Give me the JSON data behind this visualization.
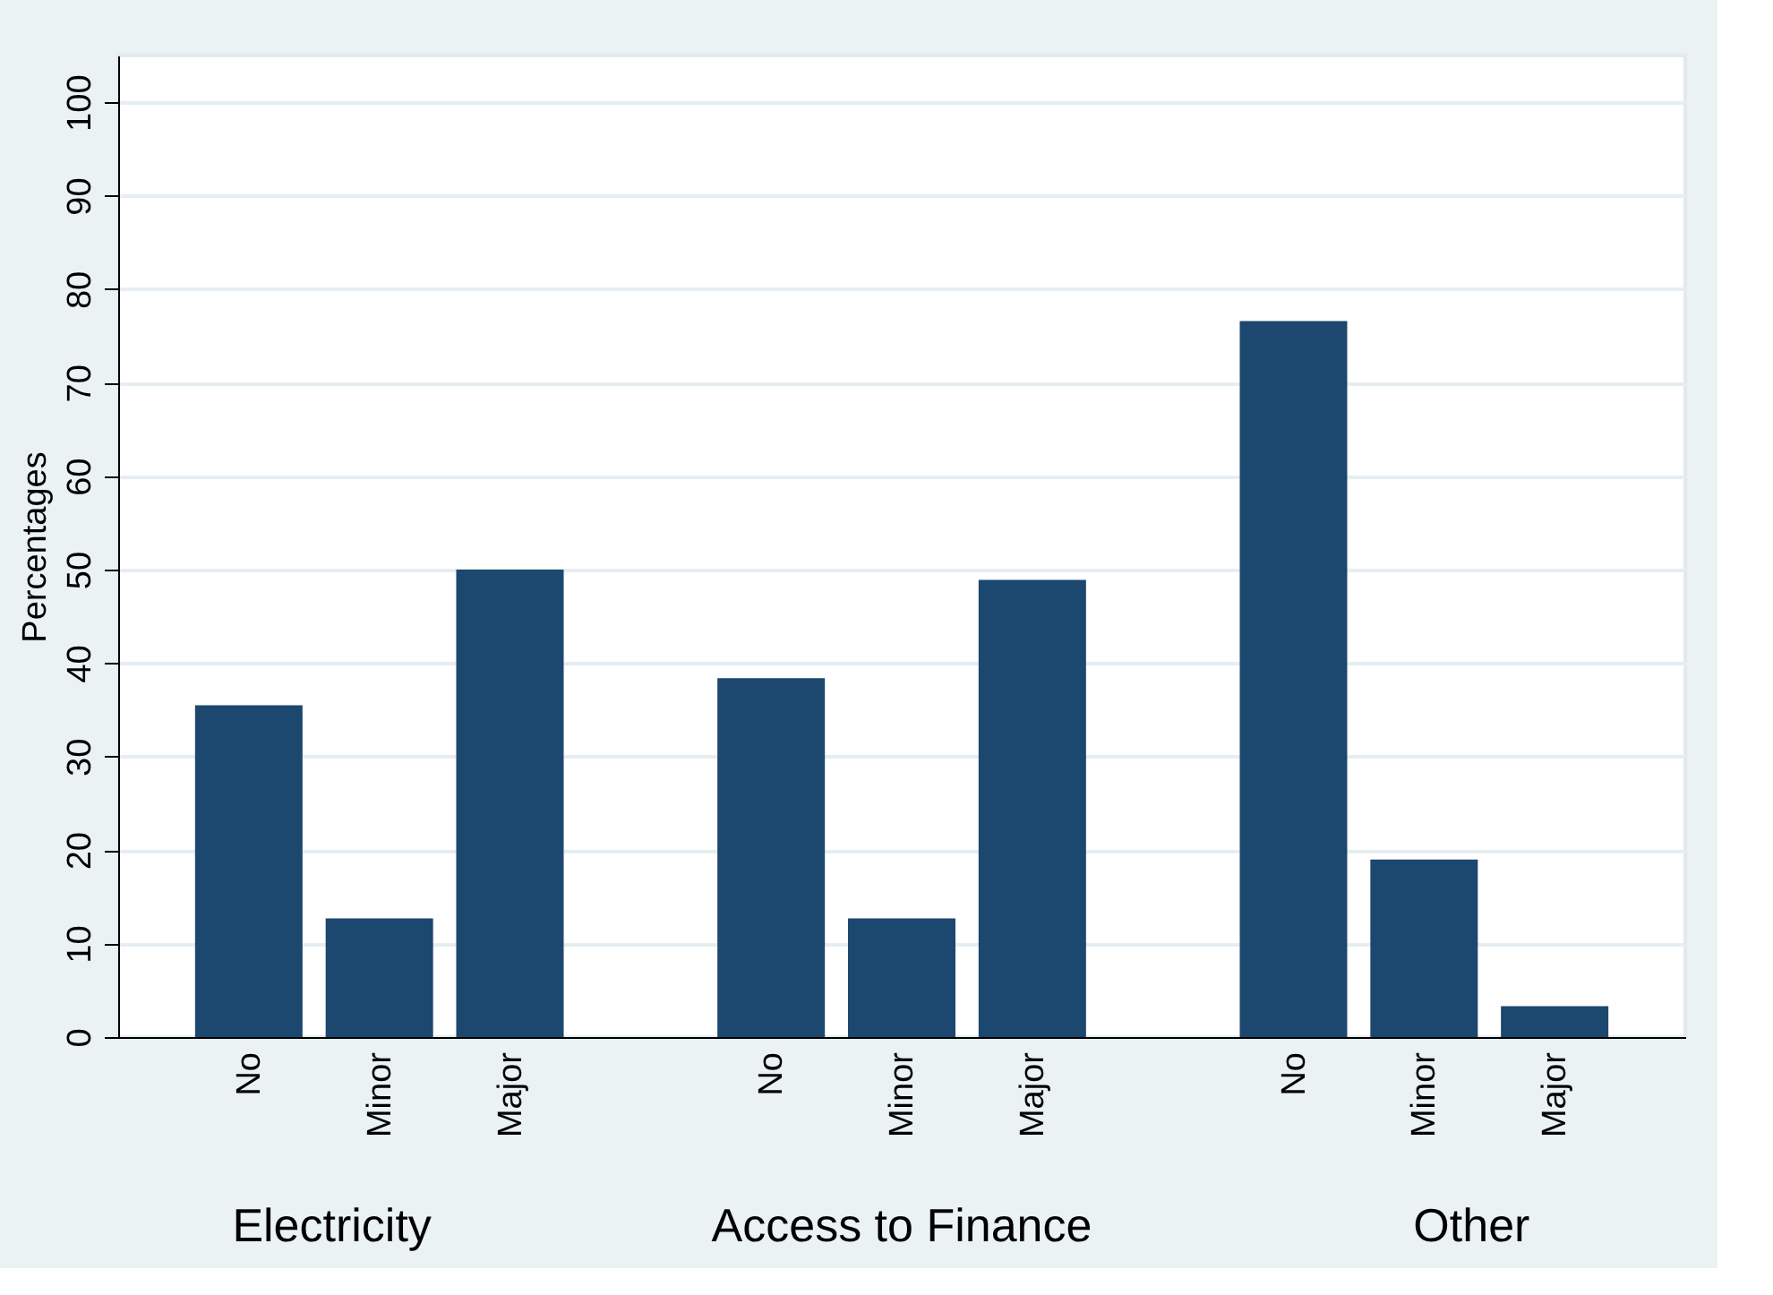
{
  "chart_data": {
    "type": "bar",
    "ylabel": "Percentages",
    "categories": [
      "No",
      "Minor",
      "Major",
      "No",
      "Minor",
      "Major",
      "No",
      "Minor",
      "Major"
    ],
    "values": [
      35.5,
      12.7,
      50,
      38.4,
      12.7,
      48.9,
      76.6,
      19.0,
      3.3
    ],
    "color": "#1c476f",
    "ylim": [
      0,
      105
    ],
    "yticks": [
      0,
      10,
      20,
      30,
      40,
      50,
      60,
      70,
      80,
      90,
      100
    ],
    "grid": "y",
    "annotations": [
      "Electricity",
      "Access to Finance",
      "Other"
    ]
  }
}
